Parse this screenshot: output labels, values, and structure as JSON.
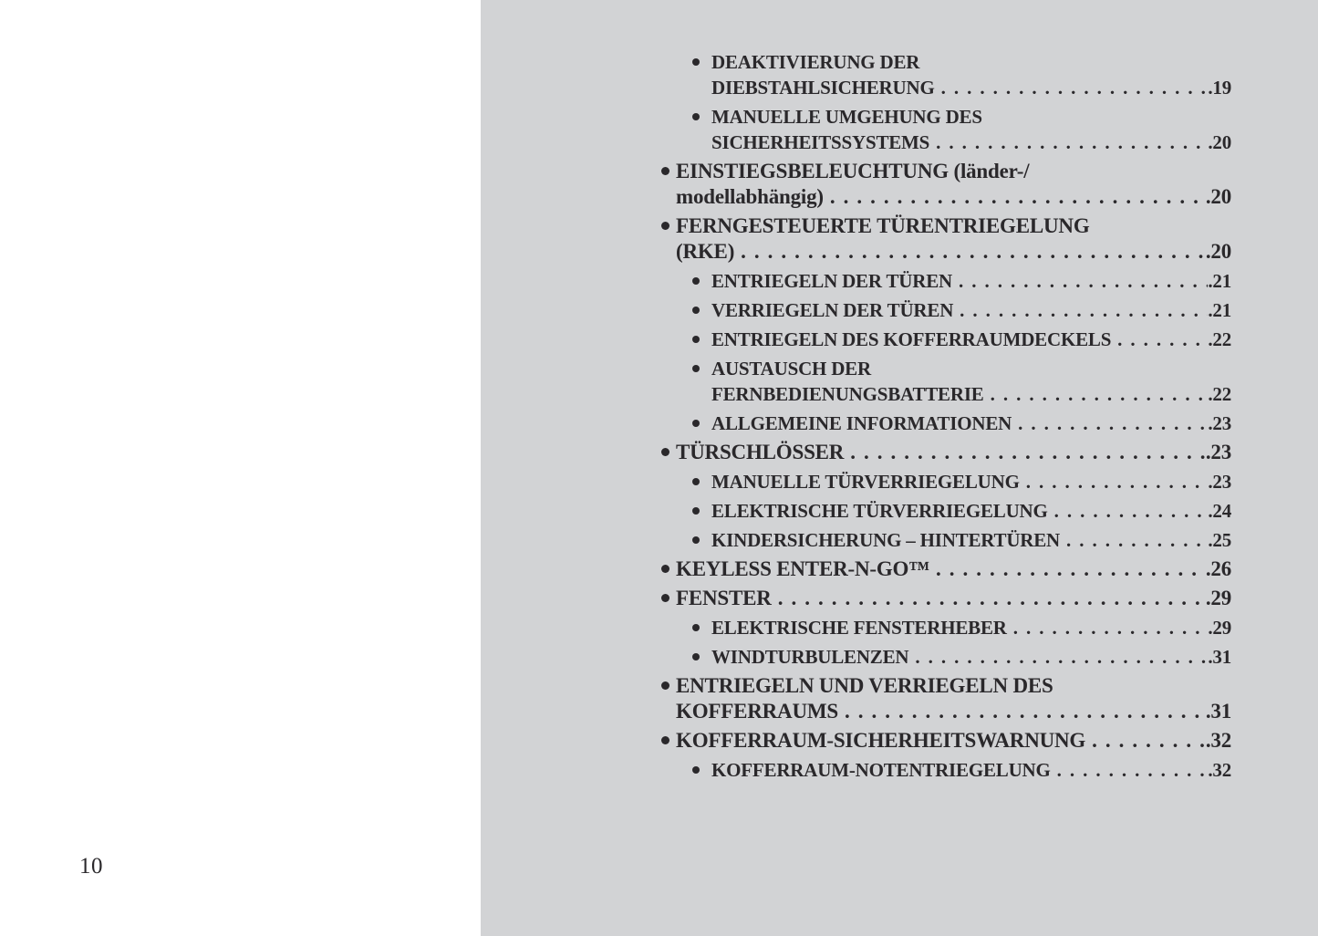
{
  "page": {
    "page_number": "10",
    "colors": {
      "panel-bg": "#d2d3d5",
      "text-color": "#2a282b"
    }
  },
  "toc": {
    "entries": [
      {
        "level": 2,
        "lines": [
          "DEAKTIVIERUNG DER",
          "DIEBSTAHLSICHERUNG"
        ],
        "page": "19"
      },
      {
        "level": 2,
        "lines": [
          "MANUELLE UMGEHUNG DES",
          "SICHERHEITSSYSTEMS"
        ],
        "page": "20"
      },
      {
        "level": 1,
        "lines": [
          "EINSTIEGSBELEUCHTUNG (länder-/",
          "modellabhängig)"
        ],
        "page": "20"
      },
      {
        "level": 1,
        "lines": [
          "FERNGESTEUERTE TÜRENTRIEGELUNG",
          "(RKE)"
        ],
        "page": "20"
      },
      {
        "level": 2,
        "lines": [
          "ENTRIEGELN DER TÜREN"
        ],
        "page": "21"
      },
      {
        "level": 2,
        "lines": [
          "VERRIEGELN DER TÜREN"
        ],
        "page": "21"
      },
      {
        "level": 2,
        "lines": [
          "ENTRIEGELN DES KOFFERRAUMDECKELS"
        ],
        "page": "22"
      },
      {
        "level": 2,
        "lines": [
          "AUSTAUSCH DER",
          "FERNBEDIENUNGSBATTERIE"
        ],
        "page": "22"
      },
      {
        "level": 2,
        "lines": [
          "ALLGEMEINE INFORMATIONEN"
        ],
        "page": "23"
      },
      {
        "level": 1,
        "lines": [
          "TÜRSCHLÖSSER"
        ],
        "page": "23"
      },
      {
        "level": 2,
        "lines": [
          "MANUELLE TÜRVERRIEGELUNG"
        ],
        "page": "23"
      },
      {
        "level": 2,
        "lines": [
          "ELEKTRISCHE TÜRVERRIEGELUNG"
        ],
        "page": "24"
      },
      {
        "level": 2,
        "lines": [
          "KINDERSICHERUNG – HINTERTÜREN"
        ],
        "page": "25"
      },
      {
        "level": 1,
        "lines": [
          "KEYLESS ENTER-N-GO™"
        ],
        "page": "26"
      },
      {
        "level": 1,
        "lines": [
          "FENSTER"
        ],
        "page": "29"
      },
      {
        "level": 2,
        "lines": [
          "ELEKTRISCHE FENSTERHEBER"
        ],
        "page": "29"
      },
      {
        "level": 2,
        "lines": [
          "WINDTURBULENZEN"
        ],
        "page": "31"
      },
      {
        "level": 1,
        "lines": [
          "ENTRIEGELN UND VERRIEGELN DES",
          "KOFFERRAUMS"
        ],
        "page": "31"
      },
      {
        "level": 1,
        "lines": [
          "KOFFERRAUM-SICHERHEITSWARNUNG"
        ],
        "page": "32"
      },
      {
        "level": 2,
        "lines": [
          "KOFFERRAUM-NOTENTRIEGELUNG"
        ],
        "page": "32"
      }
    ]
  }
}
